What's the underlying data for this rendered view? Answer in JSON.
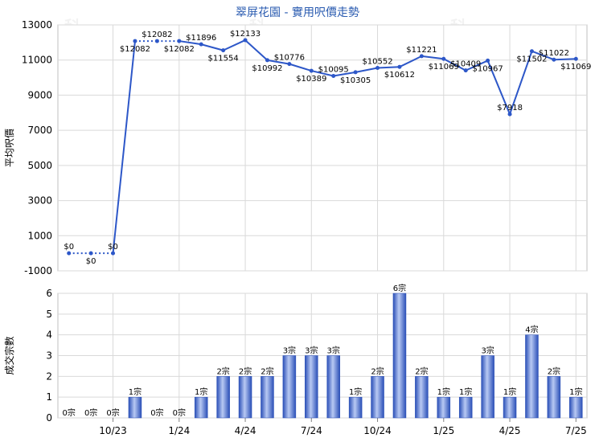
{
  "title": "翠屏花園 - 實用呎價走勢",
  "watermark": "科一",
  "colors": {
    "line": "#2d57c8",
    "grid": "#d9d9d9",
    "bar_dark": "#2a4fb7",
    "bar_light": "#b8c9f3",
    "title": "#2a5bb0"
  },
  "chart_data": [
    {
      "type": "line",
      "title": "翠屏花園 - 實用呎價走勢",
      "ylabel": "平均呎價",
      "ylim": [
        -1000,
        13000
      ],
      "yticks": [
        "13000",
        "11000",
        "9000",
        "7000",
        "5000",
        "3000",
        "1000",
        "-1000"
      ],
      "grid": true,
      "series": [
        {
          "values": [
            0,
            0,
            0,
            12082,
            12082,
            12082,
            11896,
            11554,
            12133,
            10992,
            10776,
            10389,
            10095,
            10305,
            10552,
            10612,
            11221,
            11069,
            10409,
            10967,
            7918,
            11502,
            11022,
            11069
          ],
          "labels": [
            "$0",
            "$0",
            "$0",
            "$12082",
            "$12082",
            "$12082",
            "$11896",
            "$11554",
            "$12133",
            "$10992",
            "$10776",
            "$10389",
            "$10095",
            "$10305",
            "$10552",
            "$10612",
            "$11221",
            "$11069",
            "$10409",
            "$10967",
            "$7918",
            "$11502",
            "$11022",
            "$11069"
          ],
          "dotted_segments": [
            [
              0,
              1
            ],
            [
              1,
              2
            ],
            [
              3,
              4
            ],
            [
              4,
              5
            ]
          ]
        }
      ]
    },
    {
      "type": "bar",
      "ylabel": "成交宗數",
      "ylim": [
        0,
        6
      ],
      "yticks": [
        "6",
        "5",
        "4",
        "3",
        "2",
        "1",
        "0"
      ],
      "grid": true,
      "categories": [
        "10/23",
        "1/24",
        "4/24",
        "7/24",
        "10/24",
        "1/25",
        "4/25",
        "7/25"
      ],
      "category_index": [
        2,
        5,
        8,
        11,
        14,
        17,
        20,
        23
      ],
      "values": [
        0,
        0,
        0,
        1,
        0,
        0,
        1,
        2,
        2,
        2,
        3,
        3,
        3,
        1,
        2,
        6,
        2,
        1,
        1,
        3,
        1,
        4,
        2,
        1
      ],
      "labels": [
        "0宗",
        "0宗",
        "0宗",
        "1宗",
        "0宗",
        "0宗",
        "1宗",
        "2宗",
        "2宗",
        "2宗",
        "3宗",
        "3宗",
        "3宗",
        "1宗",
        "2宗",
        "6宗",
        "2宗",
        "1宗",
        "1宗",
        "3宗",
        "1宗",
        "4宗",
        "2宗",
        "1宗"
      ]
    }
  ]
}
